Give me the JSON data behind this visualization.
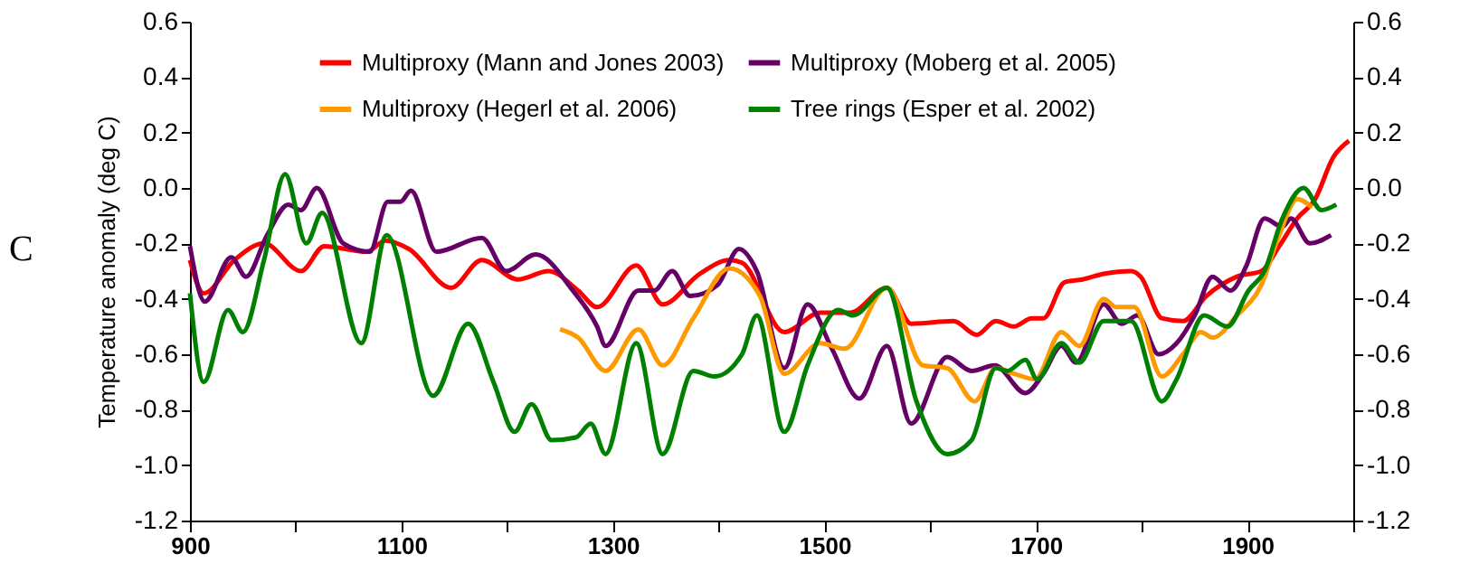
{
  "chart_data": {
    "type": "line",
    "ylabel": "Temperature anomaly (deg C)",
    "annotations": [
      "C"
    ],
    "xlim": [
      900,
      2000
    ],
    "xticks": [
      900,
      {
        "value": 1000,
        "label": null
      },
      1100,
      {
        "value": 1200,
        "label": null
      },
      1300,
      {
        "value": 1400,
        "label": null
      },
      1500,
      {
        "value": 1600,
        "label": null
      },
      1700,
      {
        "value": 1800,
        "label": null
      },
      1900,
      {
        "value": 2000,
        "label": null
      }
    ],
    "ylim": [
      -1.2,
      0.6
    ],
    "yticks": [
      -1.2,
      {
        "value": -1,
        "label": "-1.0"
      },
      -0.8,
      -0.6,
      -0.4,
      -0.2,
      {
        "value": 0,
        "label": "0.0"
      },
      0.2,
      0.4,
      0.6
    ],
    "y2lim": [
      -1.2,
      0.6
    ],
    "y2ticks": [
      -1.2,
      {
        "value": -1,
        "label": "-1.0"
      },
      -0.8,
      -0.6,
      -0.4,
      -0.2,
      {
        "value": 0,
        "label": "0.0"
      },
      0.2,
      0.4,
      0.6
    ],
    "grid": false,
    "legend": "top",
    "marker": "none",
    "line_style": "solid",
    "series": [
      {
        "name": "Multiproxy (Mann and Jones 2003)",
        "color": "#ff0000",
        "x": [
          900,
          913,
          942,
          970,
          1005,
          1027,
          1067,
          1085,
          1107,
          1147,
          1176,
          1210,
          1239,
          1267,
          1285,
          1322,
          1347,
          1382,
          1410,
          1422,
          1462,
          1496,
          1524,
          1559,
          1582,
          1622,
          1644,
          1662,
          1679,
          1696,
          1707,
          1727,
          1744,
          1764,
          1790,
          1799,
          1819,
          1839,
          1861,
          1890,
          1913,
          1930,
          1947,
          1964,
          1981,
          1996
        ],
        "values": [
          -0.26,
          -0.38,
          -0.26,
          -0.2,
          -0.3,
          -0.21,
          -0.23,
          -0.19,
          -0.22,
          -0.36,
          -0.26,
          -0.33,
          -0.3,
          -0.37,
          -0.43,
          -0.28,
          -0.42,
          -0.31,
          -0.26,
          -0.27,
          -0.52,
          -0.45,
          -0.45,
          -0.36,
          -0.49,
          -0.48,
          -0.53,
          -0.48,
          -0.5,
          -0.47,
          -0.47,
          -0.34,
          -0.33,
          -0.31,
          -0.3,
          -0.32,
          -0.47,
          -0.48,
          -0.39,
          -0.32,
          -0.3,
          -0.21,
          -0.11,
          -0.04,
          0.11,
          0.17
        ]
      },
      {
        "name": "Multiproxy (Moberg et al. 2005)",
        "color": "#660066",
        "x": [
          900,
          914,
          939,
          953,
          973,
          993,
          1005,
          1020,
          1045,
          1070,
          1087,
          1099,
          1109,
          1133,
          1176,
          1199,
          1227,
          1262,
          1285,
          1293,
          1324,
          1339,
          1356,
          1373,
          1399,
          1419,
          1436,
          1462,
          1484,
          1507,
          1533,
          1559,
          1582,
          1616,
          1639,
          1661,
          1690,
          1707,
          1724,
          1738,
          1764,
          1781,
          1796,
          1816,
          1833,
          1850,
          1867,
          1884,
          1899,
          1916,
          1933,
          1941,
          1959,
          1979
        ],
        "values": [
          -0.21,
          -0.41,
          -0.25,
          -0.32,
          -0.17,
          -0.06,
          -0.08,
          0.0,
          -0.2,
          -0.23,
          -0.05,
          -0.05,
          -0.01,
          -0.23,
          -0.18,
          -0.3,
          -0.24,
          -0.37,
          -0.5,
          -0.57,
          -0.37,
          -0.37,
          -0.3,
          -0.39,
          -0.35,
          -0.22,
          -0.3,
          -0.65,
          -0.42,
          -0.58,
          -0.76,
          -0.57,
          -0.85,
          -0.61,
          -0.66,
          -0.64,
          -0.74,
          -0.67,
          -0.57,
          -0.63,
          -0.42,
          -0.49,
          -0.46,
          -0.6,
          -0.56,
          -0.46,
          -0.32,
          -0.37,
          -0.28,
          -0.11,
          -0.14,
          -0.11,
          -0.2,
          -0.17
        ]
      },
      {
        "name": "Multiproxy (Hegerl et al. 2006)",
        "color": "#ff9900",
        "x": [
          1250,
          1267,
          1293,
          1324,
          1347,
          1376,
          1410,
          1439,
          1462,
          1496,
          1519,
          1559,
          1593,
          1616,
          1642,
          1662,
          1679,
          1699,
          1724,
          1741,
          1764,
          1776,
          1793,
          1819,
          1839,
          1856,
          1867,
          1890,
          1913,
          1930,
          1947,
          1961
        ],
        "values": [
          -0.51,
          -0.54,
          -0.66,
          -0.51,
          -0.64,
          -0.47,
          -0.29,
          -0.39,
          -0.67,
          -0.56,
          -0.58,
          -0.36,
          -0.64,
          -0.65,
          -0.77,
          -0.65,
          -0.67,
          -0.69,
          -0.52,
          -0.57,
          -0.4,
          -0.43,
          -0.43,
          -0.68,
          -0.6,
          -0.52,
          -0.54,
          -0.46,
          -0.35,
          -0.17,
          -0.04,
          -0.07
        ]
      },
      {
        "name": "Tree rings (Esper et al. 2002)",
        "color": "#008000",
        "x": [
          900,
          913,
          936,
          950,
          970,
          990,
          1010,
          1025,
          1062,
          1086,
          1130,
          1163,
          1187,
          1207,
          1223,
          1242,
          1265,
          1279,
          1293,
          1322,
          1347,
          1376,
          1396,
          1422,
          1436,
          1462,
          1484,
          1513,
          1527,
          1559,
          1587,
          1616,
          1639,
          1662,
          1673,
          1690,
          1701,
          1724,
          1741,
          1764,
          1790,
          1819,
          1833,
          1859,
          1881,
          1901,
          1916,
          1933,
          1953,
          1970,
          1984
        ],
        "values": [
          -0.38,
          -0.7,
          -0.44,
          -0.52,
          -0.26,
          0.05,
          -0.2,
          -0.09,
          -0.56,
          -0.17,
          -0.75,
          -0.49,
          -0.7,
          -0.88,
          -0.78,
          -0.91,
          -0.9,
          -0.85,
          -0.96,
          -0.56,
          -0.96,
          -0.66,
          -0.68,
          -0.6,
          -0.46,
          -0.88,
          -0.64,
          -0.44,
          -0.46,
          -0.36,
          -0.77,
          -0.96,
          -0.91,
          -0.65,
          -0.66,
          -0.62,
          -0.69,
          -0.56,
          -0.63,
          -0.48,
          -0.48,
          -0.77,
          -0.69,
          -0.46,
          -0.5,
          -0.37,
          -0.3,
          -0.11,
          0.0,
          -0.08,
          -0.06
        ]
      }
    ]
  }
}
